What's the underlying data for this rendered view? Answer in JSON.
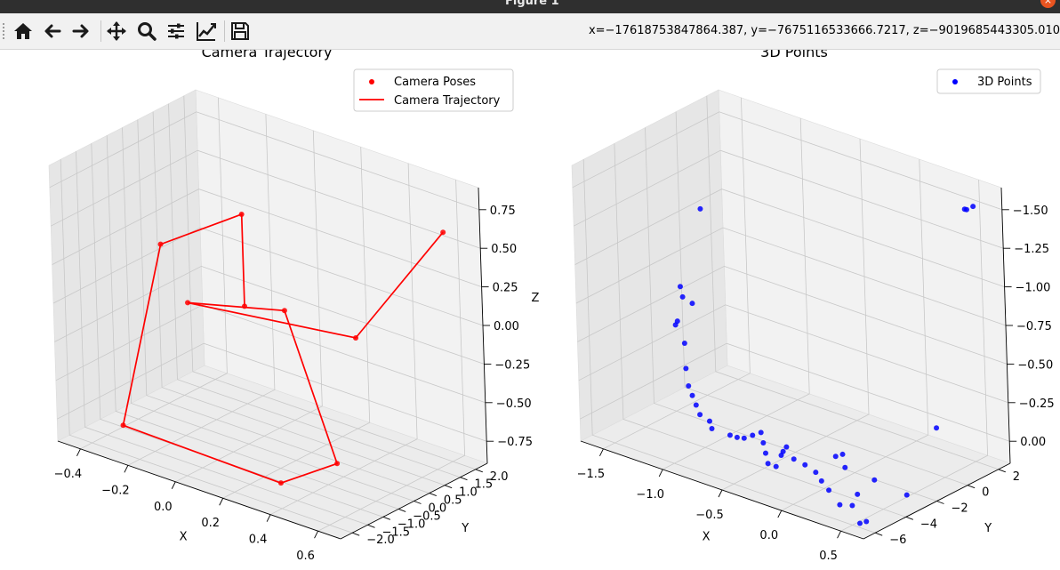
{
  "window": {
    "title": "Figure 1",
    "minimize_label": "–",
    "close_label": "×"
  },
  "toolbar": {
    "buttons": [
      {
        "name": "home",
        "icon": "home-icon"
      },
      {
        "name": "back",
        "icon": "arrow-left-icon"
      },
      {
        "name": "forward",
        "icon": "arrow-right-icon"
      },
      {
        "name": "pan",
        "icon": "move-icon"
      },
      {
        "name": "zoom",
        "icon": "magnifier-icon"
      },
      {
        "name": "configure-subplots",
        "icon": "sliders-icon"
      },
      {
        "name": "edit-axis",
        "icon": "line-chart-icon"
      },
      {
        "name": "save",
        "icon": "floppy-disk-icon"
      }
    ],
    "coordinates": "x=−17618753847864.387, y=−7675116533666.7217, z=−9019685443305.010"
  },
  "chart_data": [
    {
      "type": "scatter",
      "projection": "3d",
      "title": "Camera Trajectory",
      "xlabel": "X",
      "ylabel": "Y",
      "zlabel": "Z",
      "xlim": [
        -0.5,
        0.7
      ],
      "ylim": [
        -2.2,
        2.2
      ],
      "zlim": [
        -0.9,
        0.9
      ],
      "xticks": [
        "−0.4",
        "−0.2",
        "0.0",
        "0.2",
        "0.4",
        "0.6"
      ],
      "yticks": [
        "−2.0",
        "−1.5",
        "−1.0",
        "−0.5",
        "0.0",
        "0.5",
        "1.0",
        "1.5",
        "2.0"
      ],
      "zticks": [
        "−0.75",
        "−0.50",
        "−0.25",
        "0.00",
        "0.25",
        "0.50",
        "0.75"
      ],
      "grid": true,
      "legend_position": "top-right",
      "legend": [
        {
          "label": "Camera Poses",
          "kind": "marker",
          "color": "#ff0000"
        },
        {
          "label": "Camera Trajectory",
          "kind": "line",
          "color": "#ff0000"
        }
      ],
      "series": [
        {
          "name": "Camera Poses",
          "kind": "scatter",
          "color": "#ff0000",
          "points": [
            [
              0.0,
              0.0,
              0.0
            ],
            [
              0.0,
              0.0,
              0.6
            ],
            [
              -0.25,
              -0.7,
              0.35
            ],
            [
              -0.45,
              -0.6,
              -0.95
            ],
            [
              0.35,
              -1.5,
              -0.8
            ],
            [
              0.55,
              -1.2,
              -0.6
            ],
            [
              0.2,
              -0.2,
              0.1
            ],
            [
              -0.2,
              -0.3,
              -0.05
            ],
            [
              0.4,
              0.5,
              -0.05
            ],
            [
              0.6,
              1.8,
              0.6
            ]
          ]
        },
        {
          "name": "Camera Trajectory",
          "kind": "line",
          "color": "#ff0000",
          "points": [
            [
              0.0,
              0.0,
              0.0
            ],
            [
              0.0,
              0.0,
              0.6
            ],
            [
              -0.25,
              -0.7,
              0.35
            ],
            [
              -0.45,
              -0.6,
              -0.95
            ],
            [
              0.35,
              -1.5,
              -0.8
            ],
            [
              0.55,
              -1.2,
              -0.6
            ],
            [
              0.2,
              -0.2,
              0.1
            ],
            [
              -0.2,
              -0.3,
              -0.05
            ],
            [
              0.4,
              0.5,
              -0.05
            ],
            [
              0.6,
              1.8,
              0.6
            ]
          ]
        }
      ]
    },
    {
      "type": "scatter",
      "projection": "3d",
      "title": "3D Points",
      "xlabel": "X",
      "ylabel": "Y",
      "zlabel": "",
      "xlim": [
        -1.9,
        0.9
      ],
      "ylim": [
        -7.0,
        3.0
      ],
      "zlim": [
        -1.75,
        0.2
      ],
      "xticks": [
        "−1.5",
        "−1.0",
        "−0.5",
        "0.0",
        "0.5"
      ],
      "yticks": [
        "−6",
        "−4",
        "−2",
        "0",
        "2"
      ],
      "zticks": [
        "0.00",
        "−0.25",
        "−0.50",
        "−0.75",
        "−1.00",
        "−1.25",
        "−1.50"
      ],
      "grid": true,
      "legend_position": "top-right",
      "legend": [
        {
          "label": "3D Points",
          "kind": "marker",
          "color": "#0000ff"
        }
      ],
      "series": [
        {
          "name": "3D Points",
          "kind": "scatter",
          "color": "#0000ff",
          "points": [
            [
              0.7,
              2.4,
              0.05
            ],
            [
              0.6,
              2.5,
              0.0
            ],
            [
              0.65,
              2.3,
              0.02
            ],
            [
              -1.3,
              -2.5,
              -0.2
            ],
            [
              0.8,
              -1.2,
              -1.3
            ],
            [
              0.9,
              -4.0,
              -1.6
            ],
            [
              -1.6,
              -2.0,
              -0.85
            ],
            [
              -1.55,
              -2.2,
              -0.9
            ],
            [
              -1.5,
              -1.9,
              -0.95
            ],
            [
              -1.6,
              -2.4,
              -1.1
            ],
            [
              -1.55,
              -2.6,
              -1.05
            ],
            [
              -1.5,
              -2.5,
              -1.2
            ],
            [
              -1.45,
              -2.8,
              -1.35
            ],
            [
              -1.4,
              -3.0,
              -1.45
            ],
            [
              -1.35,
              -3.1,
              -1.5
            ],
            [
              -1.3,
              -3.2,
              -1.55
            ],
            [
              -1.25,
              -3.3,
              -1.6
            ],
            [
              -1.2,
              -3.0,
              -1.65
            ],
            [
              -1.15,
              -3.2,
              -1.68
            ],
            [
              -1.0,
              -3.0,
              -1.7
            ],
            [
              -0.9,
              -3.2,
              -1.68
            ],
            [
              -0.8,
              -3.4,
              -1.65
            ],
            [
              -0.7,
              -3.5,
              -1.6
            ],
            [
              -0.6,
              -3.6,
              -1.55
            ],
            [
              -0.55,
              -3.8,
              -1.6
            ],
            [
              -0.5,
              -4.0,
              -1.65
            ],
            [
              -0.45,
              -4.2,
              -1.7
            ],
            [
              -0.4,
              -4.0,
              -1.72
            ],
            [
              -0.3,
              -4.3,
              -1.6
            ],
            [
              -0.25,
              -4.5,
              -1.55
            ],
            [
              -0.2,
              -4.6,
              -1.5
            ],
            [
              -0.1,
              -4.8,
              -1.55
            ],
            [
              -0.05,
              -4.4,
              -1.6
            ],
            [
              0.1,
              -4.7,
              -1.6
            ],
            [
              0.2,
              -5.0,
              -1.62
            ],
            [
              0.3,
              -5.2,
              -1.65
            ],
            [
              0.45,
              -5.5,
              -1.7
            ],
            [
              0.5,
              -5.0,
              -1.72
            ],
            [
              0.6,
              -5.3,
              -1.6
            ],
            [
              0.3,
              -4.2,
              -1.45
            ],
            [
              0.2,
              -4.0,
              -1.5
            ],
            [
              0.35,
              -4.4,
              -1.52
            ],
            [
              0.7,
              -4.8,
              -1.5
            ],
            [
              0.75,
              -6.2,
              -1.72
            ],
            [
              0.8,
              -6.1,
              -1.7
            ]
          ]
        }
      ]
    }
  ]
}
